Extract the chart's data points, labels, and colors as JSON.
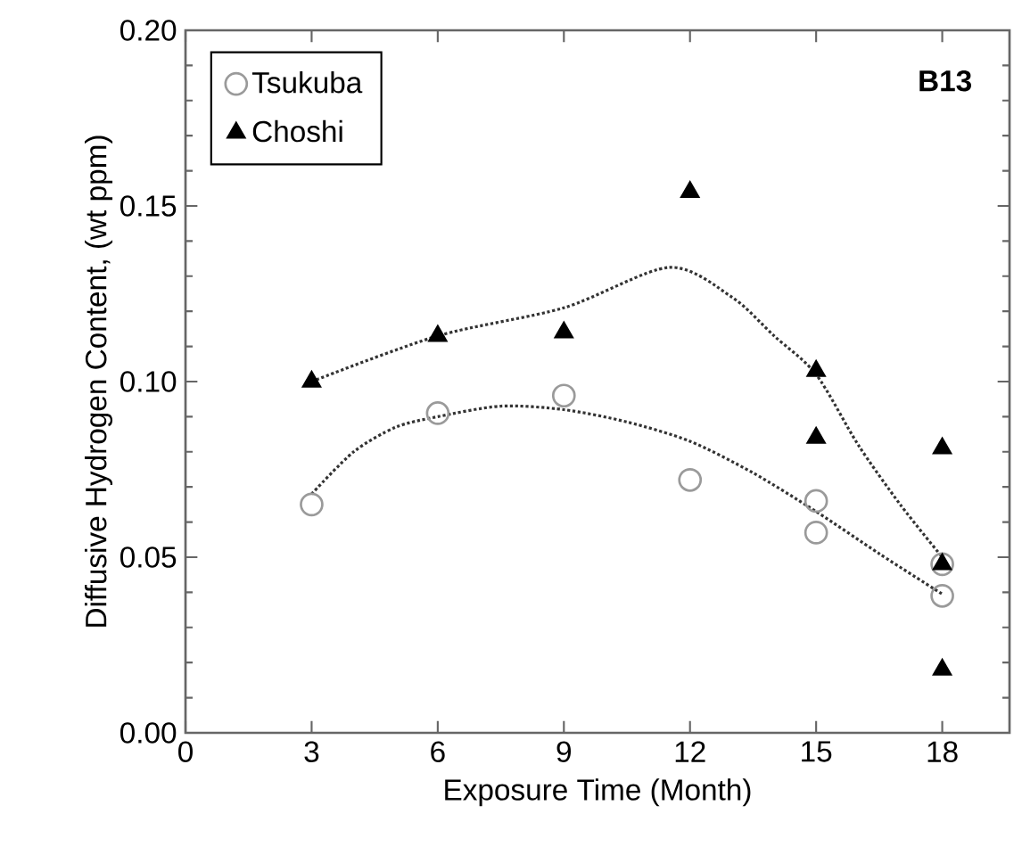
{
  "chart_data": {
    "type": "scatter",
    "xlabel": "Exposure Time (Month)",
    "ylabel": "Diffusive Hydrogen Content, (wt ppm)",
    "xlim": [
      0,
      19.6
    ],
    "ylim": [
      0,
      0.2
    ],
    "xticks": [
      0,
      3,
      6,
      9,
      12,
      15,
      18
    ],
    "yticks": [
      {
        "value": 0,
        "label": "0.00"
      },
      {
        "value": 0.05,
        "label": "0.05"
      },
      {
        "value": 0.1,
        "label": "0.10"
      },
      {
        "value": 0.15,
        "label": "0.15"
      },
      {
        "value": 0.2,
        "label": "0.20"
      }
    ],
    "grid": false,
    "legend": "top left",
    "annotations": [
      "B13"
    ],
    "series": [
      {
        "name": "Tsukuba",
        "marker": "circle",
        "color": "#9a9a9a",
        "x": [
          3,
          6,
          9,
          12,
          15,
          15,
          18,
          18
        ],
        "values": [
          0.065,
          0.091,
          0.096,
          0.072,
          0.066,
          0.057,
          0.048,
          0.039
        ]
      },
      {
        "name": "Choshi",
        "marker": "triangle",
        "color": "#000000",
        "x": [
          3,
          6,
          9,
          12,
          15,
          15,
          18,
          18,
          18
        ],
        "values": [
          0.1,
          0.113,
          0.114,
          0.154,
          0.103,
          0.084,
          0.081,
          0.048,
          0.018
        ]
      },
      {
        "type": "line",
        "marker": "none",
        "line_style": "dotted",
        "color": "#333333",
        "x": [
          3,
          4,
          5,
          6,
          7.5,
          9,
          10.5,
          12,
          13.5,
          15,
          16.5,
          18
        ],
        "values": [
          0.068,
          0.08,
          0.087,
          0.09,
          0.093,
          0.092,
          0.0885,
          0.083,
          0.074,
          0.063,
          0.051,
          0.0395
        ]
      },
      {
        "type": "line",
        "marker": "none",
        "line_style": "dotted",
        "color": "#333333",
        "x": [
          3,
          6,
          9,
          11.5,
          13,
          14,
          15,
          16,
          17,
          18
        ],
        "values": [
          0.1,
          0.113,
          0.121,
          0.1325,
          0.124,
          0.113,
          0.102,
          0.082,
          0.065,
          0.05
        ]
      }
    ]
  }
}
